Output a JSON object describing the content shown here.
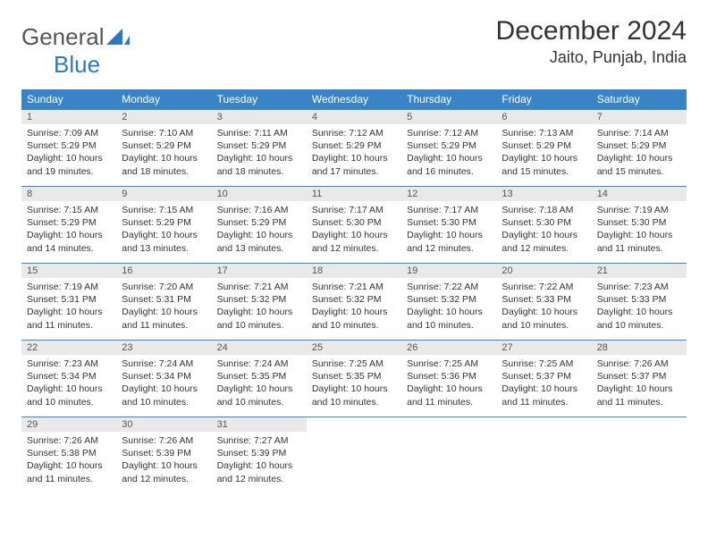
{
  "logo": {
    "text1": "General",
    "text2": "Blue"
  },
  "title": "December 2024",
  "location": "Jaito, Punjab, India",
  "colors": {
    "header_bg": "#3984c6",
    "header_text": "#ffffff",
    "daynum_bg": "#e9e9e9",
    "border": "#3984c6",
    "logo_gray": "#555555",
    "logo_blue": "#2f78c0"
  },
  "weekdays": [
    "Sunday",
    "Monday",
    "Tuesday",
    "Wednesday",
    "Thursday",
    "Friday",
    "Saturday"
  ],
  "days": [
    {
      "n": "1",
      "sr": "7:09 AM",
      "ss": "5:29 PM",
      "dl": "10 hours and 19 minutes."
    },
    {
      "n": "2",
      "sr": "7:10 AM",
      "ss": "5:29 PM",
      "dl": "10 hours and 18 minutes."
    },
    {
      "n": "3",
      "sr": "7:11 AM",
      "ss": "5:29 PM",
      "dl": "10 hours and 18 minutes."
    },
    {
      "n": "4",
      "sr": "7:12 AM",
      "ss": "5:29 PM",
      "dl": "10 hours and 17 minutes."
    },
    {
      "n": "5",
      "sr": "7:12 AM",
      "ss": "5:29 PM",
      "dl": "10 hours and 16 minutes."
    },
    {
      "n": "6",
      "sr": "7:13 AM",
      "ss": "5:29 PM",
      "dl": "10 hours and 15 minutes."
    },
    {
      "n": "7",
      "sr": "7:14 AM",
      "ss": "5:29 PM",
      "dl": "10 hours and 15 minutes."
    },
    {
      "n": "8",
      "sr": "7:15 AM",
      "ss": "5:29 PM",
      "dl": "10 hours and 14 minutes."
    },
    {
      "n": "9",
      "sr": "7:15 AM",
      "ss": "5:29 PM",
      "dl": "10 hours and 13 minutes."
    },
    {
      "n": "10",
      "sr": "7:16 AM",
      "ss": "5:29 PM",
      "dl": "10 hours and 13 minutes."
    },
    {
      "n": "11",
      "sr": "7:17 AM",
      "ss": "5:30 PM",
      "dl": "10 hours and 12 minutes."
    },
    {
      "n": "12",
      "sr": "7:17 AM",
      "ss": "5:30 PM",
      "dl": "10 hours and 12 minutes."
    },
    {
      "n": "13",
      "sr": "7:18 AM",
      "ss": "5:30 PM",
      "dl": "10 hours and 12 minutes."
    },
    {
      "n": "14",
      "sr": "7:19 AM",
      "ss": "5:30 PM",
      "dl": "10 hours and 11 minutes."
    },
    {
      "n": "15",
      "sr": "7:19 AM",
      "ss": "5:31 PM",
      "dl": "10 hours and 11 minutes."
    },
    {
      "n": "16",
      "sr": "7:20 AM",
      "ss": "5:31 PM",
      "dl": "10 hours and 11 minutes."
    },
    {
      "n": "17",
      "sr": "7:21 AM",
      "ss": "5:32 PM",
      "dl": "10 hours and 10 minutes."
    },
    {
      "n": "18",
      "sr": "7:21 AM",
      "ss": "5:32 PM",
      "dl": "10 hours and 10 minutes."
    },
    {
      "n": "19",
      "sr": "7:22 AM",
      "ss": "5:32 PM",
      "dl": "10 hours and 10 minutes."
    },
    {
      "n": "20",
      "sr": "7:22 AM",
      "ss": "5:33 PM",
      "dl": "10 hours and 10 minutes."
    },
    {
      "n": "21",
      "sr": "7:23 AM",
      "ss": "5:33 PM",
      "dl": "10 hours and 10 minutes."
    },
    {
      "n": "22",
      "sr": "7:23 AM",
      "ss": "5:34 PM",
      "dl": "10 hours and 10 minutes."
    },
    {
      "n": "23",
      "sr": "7:24 AM",
      "ss": "5:34 PM",
      "dl": "10 hours and 10 minutes."
    },
    {
      "n": "24",
      "sr": "7:24 AM",
      "ss": "5:35 PM",
      "dl": "10 hours and 10 minutes."
    },
    {
      "n": "25",
      "sr": "7:25 AM",
      "ss": "5:35 PM",
      "dl": "10 hours and 10 minutes."
    },
    {
      "n": "26",
      "sr": "7:25 AM",
      "ss": "5:36 PM",
      "dl": "10 hours and 11 minutes."
    },
    {
      "n": "27",
      "sr": "7:25 AM",
      "ss": "5:37 PM",
      "dl": "10 hours and 11 minutes."
    },
    {
      "n": "28",
      "sr": "7:26 AM",
      "ss": "5:37 PM",
      "dl": "10 hours and 11 minutes."
    },
    {
      "n": "29",
      "sr": "7:26 AM",
      "ss": "5:38 PM",
      "dl": "10 hours and 11 minutes."
    },
    {
      "n": "30",
      "sr": "7:26 AM",
      "ss": "5:39 PM",
      "dl": "10 hours and 12 minutes."
    },
    {
      "n": "31",
      "sr": "7:27 AM",
      "ss": "5:39 PM",
      "dl": "10 hours and 12 minutes."
    }
  ],
  "labels": {
    "sunrise": "Sunrise: ",
    "sunset": "Sunset: ",
    "daylight": "Daylight: "
  }
}
